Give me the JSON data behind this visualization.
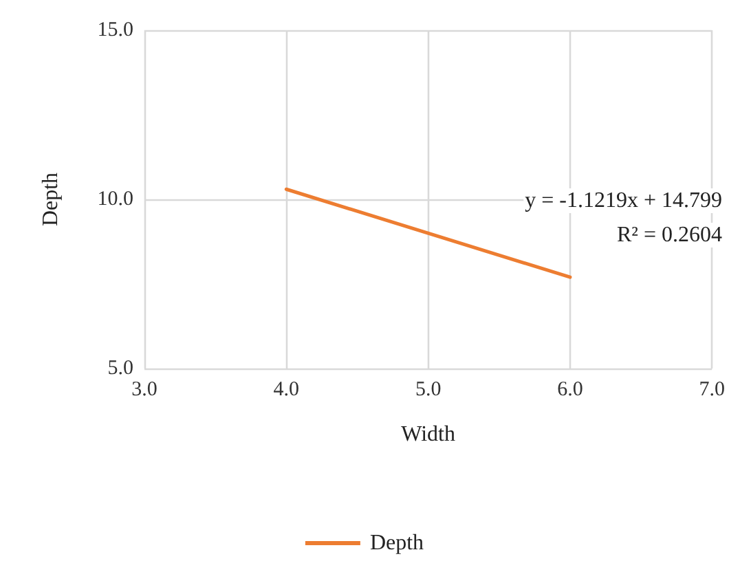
{
  "chart_data": {
    "type": "line",
    "xlabel": "Width",
    "ylabel": "Depth",
    "x": [
      4.0,
      6.0
    ],
    "series": [
      {
        "name": "Depth",
        "color": "#ed7d31",
        "values": [
          10.3,
          7.7
        ]
      }
    ],
    "xlim": [
      3,
      7
    ],
    "xticks": [
      {
        "value": 3,
        "label": "3.0"
      },
      {
        "value": 4,
        "label": "4.0"
      },
      {
        "value": 5,
        "label": "5.0"
      },
      {
        "value": 6,
        "label": "6.0"
      },
      {
        "value": 7,
        "label": "7.0"
      }
    ],
    "ylim": [
      5,
      15
    ],
    "yticks": [
      {
        "value": 5,
        "label": "5.0"
      },
      {
        "value": 10,
        "label": "10.0"
      },
      {
        "value": 15,
        "label": "15.0"
      }
    ],
    "annotations": [
      "y = -1.1219x + 14.799",
      "R² = 0.2604"
    ],
    "grid": true,
    "legend": "bottom",
    "marker": "none",
    "line_style": "solid"
  }
}
